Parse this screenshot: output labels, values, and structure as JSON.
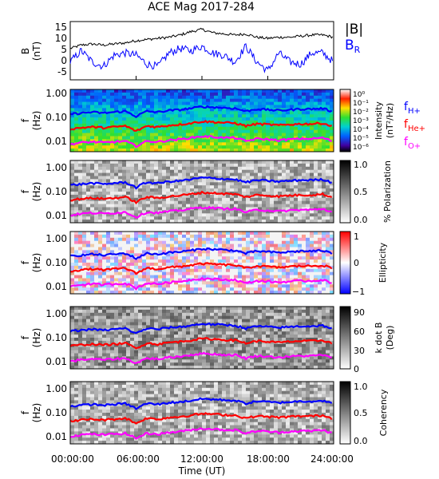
{
  "title": "ACE Mag 2017-284",
  "xaxis": {
    "label": "Time (UT)",
    "ticks": [
      "00:00:00",
      "06:00:00",
      "12:00:00",
      "18:00:00",
      "24:00:00"
    ],
    "range_hours": [
      0,
      24
    ]
  },
  "colors": {
    "btot": "#000000",
    "br": "#0000ff",
    "fH": "#0000ff",
    "fHe": "#ff0000",
    "fO": "#ff00ff"
  },
  "legend": {
    "btot": "|B|",
    "br": "B",
    "br_sub": "R",
    "fH": "f",
    "fH_sub": "H+",
    "fHe": "f",
    "fHe_sub": "He+",
    "fO": "f",
    "fO_sub": "O+"
  },
  "panels": [
    {
      "id": "b",
      "ylabel_main": "B",
      "ylabel_unit": "(nT)",
      "yticks": [
        "15",
        "10",
        "5",
        "0",
        "-5"
      ],
      "ylim": [
        -8,
        18
      ]
    },
    {
      "id": "intensity",
      "ylabel_main": "f",
      "ylabel_unit": "(Hz)",
      "yticks": [
        "1.00",
        "0.10",
        "0.01"
      ],
      "cbar_label_1": "Intensity",
      "cbar_label_2": "(nT²/Hz)",
      "cbar_ticks": [
        "10⁰",
        "10⁻¹",
        "10⁻²",
        "10⁻³",
        "10⁻⁴",
        "10⁻⁵",
        "10⁻⁶"
      ]
    },
    {
      "id": "polarization",
      "ylabel_main": "f",
      "ylabel_unit": "(Hz)",
      "yticks": [
        "1.00",
        "0.10",
        "0.01"
      ],
      "cbar_label_1": "% Polarization",
      "cbar_label_2": "",
      "cbar_ticks": [
        "1.0",
        "0.5",
        "0.0"
      ]
    },
    {
      "id": "ellipticity",
      "ylabel_main": "f",
      "ylabel_unit": "(Hz)",
      "yticks": [
        "1.00",
        "0.10",
        "0.01"
      ],
      "cbar_label_1": "Ellipticity",
      "cbar_label_2": "",
      "cbar_ticks": [
        "1",
        "0",
        "−1"
      ]
    },
    {
      "id": "kdotb",
      "ylabel_main": "f",
      "ylabel_unit": "(Hz)",
      "yticks": [
        "1.00",
        "0.10",
        "0.01"
      ],
      "cbar_label_1": "k dot B",
      "cbar_label_2": "(Deg)",
      "cbar_ticks": [
        "90",
        "60",
        "30",
        "0"
      ]
    },
    {
      "id": "coherency",
      "ylabel_main": "f",
      "ylabel_unit": "(Hz)",
      "yticks": [
        "1.00",
        "0.10",
        "0.01"
      ],
      "cbar_label_1": "Coherency",
      "cbar_label_2": "",
      "cbar_ticks": [
        "1.0",
        "0.5",
        "0.0"
      ]
    }
  ],
  "chart_data": [
    {
      "type": "line",
      "panel": "b",
      "x_hours": [
        0,
        1,
        2,
        3,
        4,
        5,
        6,
        7,
        8,
        9,
        10,
        11,
        12,
        13,
        14,
        15,
        16,
        17,
        18,
        19,
        20,
        21,
        22,
        23,
        24
      ],
      "series": [
        {
          "name": "|B|",
          "values": [
            6,
            7.5,
            8,
            7.5,
            8,
            8.5,
            9.5,
            10,
            10.5,
            11,
            12,
            13.5,
            14.5,
            13,
            12.5,
            12,
            12.5,
            11,
            10.5,
            11,
            11,
            11.5,
            12,
            12,
            11
          ]
        },
        {
          "name": "BR",
          "values": [
            0,
            5,
            0,
            -2,
            3,
            4,
            3,
            -1,
            -2,
            4,
            6,
            5,
            7,
            4,
            3,
            0,
            7,
            0,
            -4,
            4,
            0,
            -1,
            4,
            4,
            0
          ]
        }
      ],
      "ylim": [
        -8,
        18
      ]
    },
    {
      "type": "line",
      "panel": "intensity/polarization/ellipticity/kdotb/coherency overlays",
      "yscale": "log",
      "ylim": [
        0.003,
        1.0
      ],
      "x_hours": [
        0,
        1,
        2,
        3,
        4,
        5,
        6,
        7,
        8,
        9,
        10,
        11,
        12,
        13,
        14,
        15,
        16,
        17,
        18,
        19,
        20,
        21,
        22,
        23,
        24
      ],
      "series": [
        {
          "name": "fH+",
          "values": [
            0.1,
            0.11,
            0.12,
            0.11,
            0.12,
            0.13,
            0.08,
            0.13,
            0.12,
            0.14,
            0.15,
            0.17,
            0.2,
            0.19,
            0.18,
            0.17,
            0.13,
            0.16,
            0.15,
            0.14,
            0.15,
            0.16,
            0.16,
            0.17,
            0.12
          ]
        },
        {
          "name": "fHe+",
          "values": [
            0.025,
            0.028,
            0.03,
            0.028,
            0.03,
            0.033,
            0.02,
            0.033,
            0.03,
            0.035,
            0.038,
            0.043,
            0.05,
            0.048,
            0.045,
            0.043,
            0.033,
            0.04,
            0.038,
            0.035,
            0.038,
            0.04,
            0.04,
            0.043,
            0.03
          ]
        },
        {
          "name": "fO+",
          "values": [
            0.006,
            0.007,
            0.0075,
            0.007,
            0.0075,
            0.008,
            0.005,
            0.008,
            0.0075,
            0.0087,
            0.0095,
            0.011,
            0.0125,
            0.012,
            0.011,
            0.011,
            0.008,
            0.01,
            0.0095,
            0.0087,
            0.0095,
            0.01,
            0.01,
            0.011,
            0.0075
          ]
        }
      ]
    }
  ]
}
